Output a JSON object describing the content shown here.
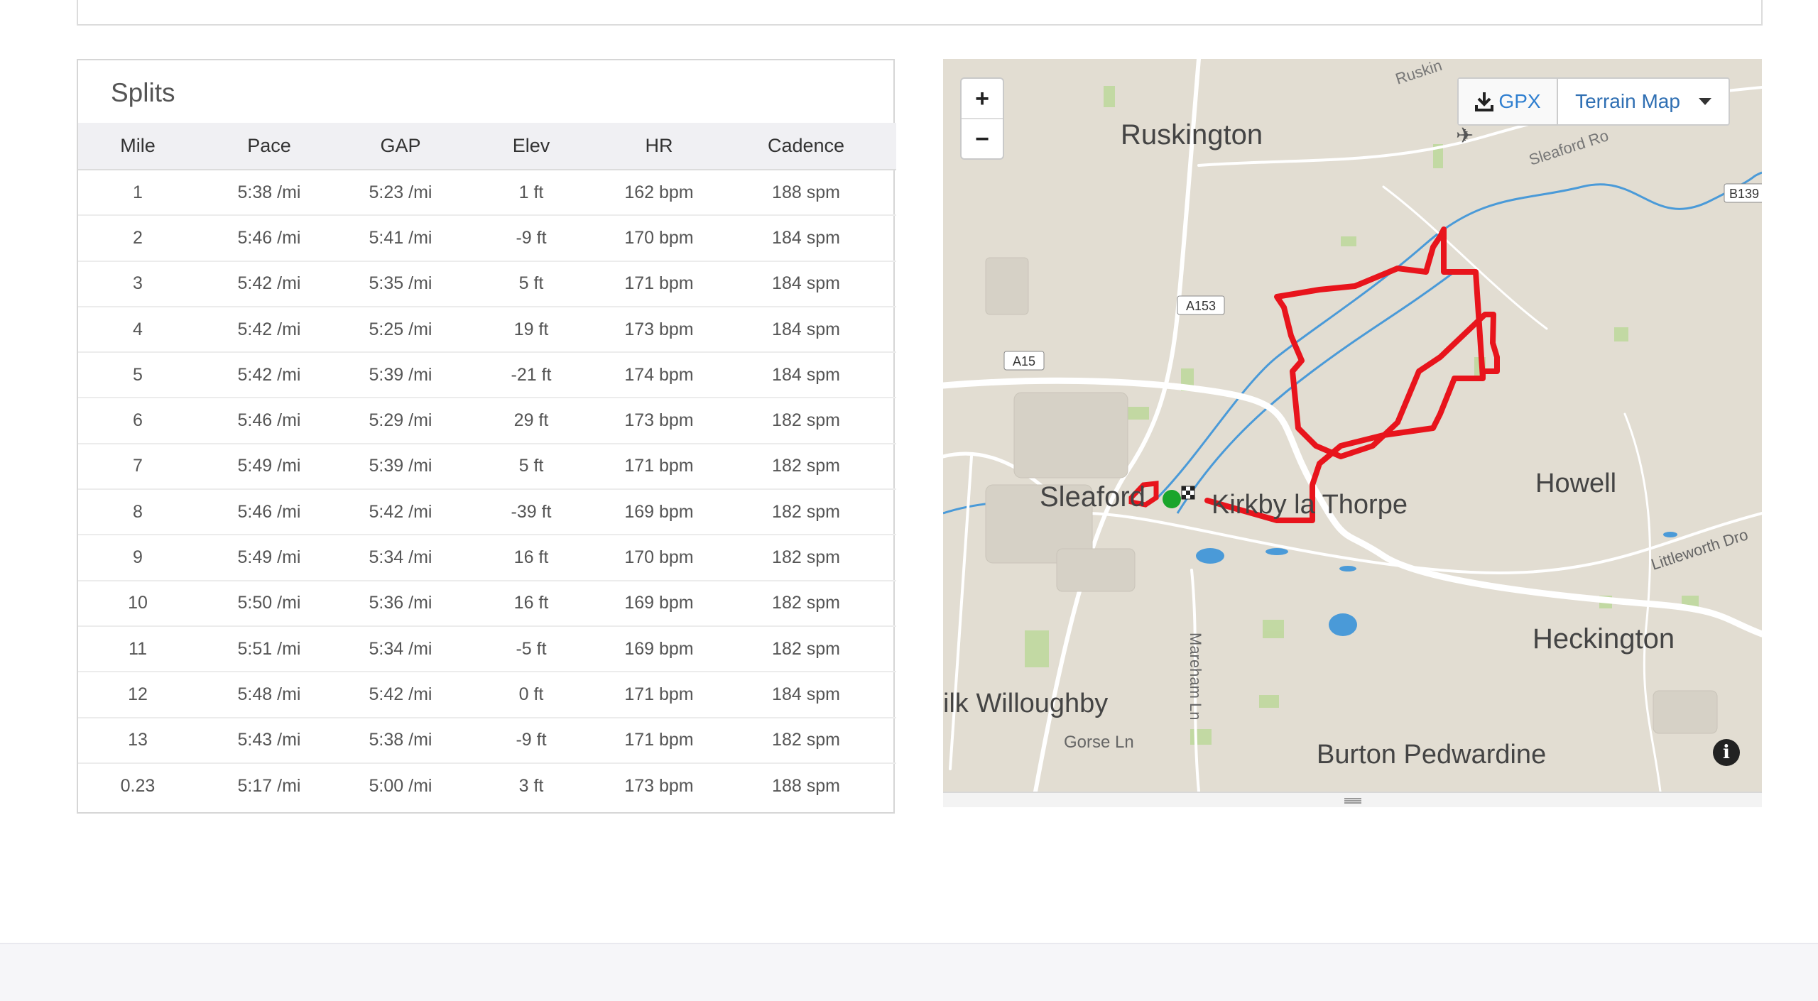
{
  "splits": {
    "title": "Splits",
    "columns": [
      "Mile",
      "Pace",
      "GAP",
      "Elev",
      "HR",
      "Cadence"
    ],
    "rows": [
      [
        "1",
        "5:38 /mi",
        "5:23 /mi",
        "1 ft",
        "162 bpm",
        "188 spm"
      ],
      [
        "2",
        "5:46 /mi",
        "5:41 /mi",
        "-9 ft",
        "170 bpm",
        "184 spm"
      ],
      [
        "3",
        "5:42 /mi",
        "5:35 /mi",
        "5 ft",
        "171 bpm",
        "184 spm"
      ],
      [
        "4",
        "5:42 /mi",
        "5:25 /mi",
        "19 ft",
        "173 bpm",
        "184 spm"
      ],
      [
        "5",
        "5:42 /mi",
        "5:39 /mi",
        "-21 ft",
        "174 bpm",
        "184 spm"
      ],
      [
        "6",
        "5:46 /mi",
        "5:29 /mi",
        "29 ft",
        "173 bpm",
        "182 spm"
      ],
      [
        "7",
        "5:49 /mi",
        "5:39 /mi",
        "5 ft",
        "171 bpm",
        "182 spm"
      ],
      [
        "8",
        "5:46 /mi",
        "5:42 /mi",
        "-39 ft",
        "169 bpm",
        "182 spm"
      ],
      [
        "9",
        "5:49 /mi",
        "5:34 /mi",
        "16 ft",
        "170 bpm",
        "182 spm"
      ],
      [
        "10",
        "5:50 /mi",
        "5:36 /mi",
        "16 ft",
        "169 bpm",
        "182 spm"
      ],
      [
        "11",
        "5:51 /mi",
        "5:34 /mi",
        "-5 ft",
        "169 bpm",
        "182 spm"
      ],
      [
        "12",
        "5:48 /mi",
        "5:42 /mi",
        "0 ft",
        "171 bpm",
        "184 spm"
      ],
      [
        "13",
        "5:43 /mi",
        "5:38 /mi",
        "-9 ft",
        "171 bpm",
        "182 spm"
      ],
      [
        "0.23",
        "5:17 /mi",
        "5:00 /mi",
        "3 ft",
        "173 bpm",
        "188 spm"
      ]
    ]
  },
  "map": {
    "zoom_in": "+",
    "zoom_out": "−",
    "gpx_label": "GPX",
    "map_type_label": "Terrain Map",
    "info_label": "i",
    "place_labels": {
      "ruskington": "Ruskington",
      "ruskington_top": "Ruskin",
      "sleaford": "Sleaford",
      "kirkby": "Kirkby la Thorpe",
      "howell": "Howell",
      "heckington": "Heckington",
      "willoughby": "ilk Willoughby",
      "burton": "Burton Pedwardine",
      "sleaford_road": "Sleaford Ro",
      "b139": "B139",
      "a153": "A153",
      "a15": "A15",
      "mareham": "Mareham Ln",
      "gorse": "Gorse Ln",
      "littleworth": "Littleworth Dro"
    },
    "colors": {
      "route": "#e8141c",
      "start_marker": "#1aa52b",
      "water": "#4a9ad8",
      "road": "#ffffff",
      "land": "#e2ddd2",
      "field": "#b5d78e"
    }
  }
}
